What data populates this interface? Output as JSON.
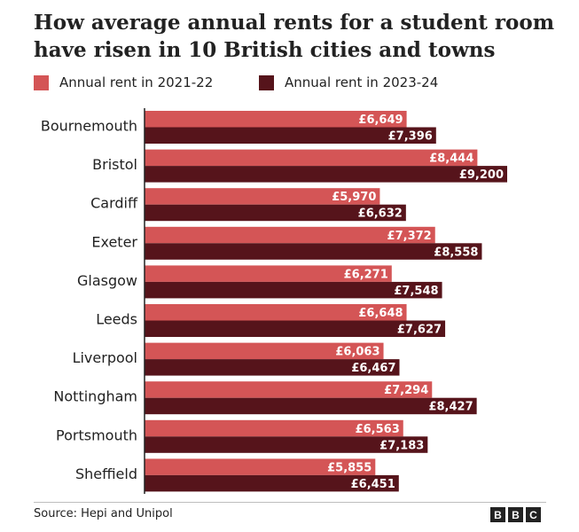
{
  "header": {
    "title": "How average annual rents for a student room have risen in 10 British cities and towns"
  },
  "legend": [
    {
      "label": "Annual rent in 2021-22",
      "color": "#d45556"
    },
    {
      "label": "Annual rent in 2023-24",
      "color": "#56141b"
    }
  ],
  "footer": {
    "source": "Source: Hepi and Unipol",
    "logo_letters": [
      "B",
      "B",
      "C"
    ]
  },
  "chart_data": {
    "type": "bar",
    "orientation": "horizontal",
    "title": "How average annual rents for a student room have risen in 10 British cities and towns",
    "xlabel": "",
    "ylabel": "",
    "xlim": [
      0,
      9500
    ],
    "grid": false,
    "legend_position": "top",
    "categories": [
      "Bournemouth",
      "Bristol",
      "Cardiff",
      "Exeter",
      "Glasgow",
      "Leeds",
      "Liverpool",
      "Nottingham",
      "Portsmouth",
      "Sheffield"
    ],
    "series": [
      {
        "name": "Annual rent in 2021-22",
        "color": "#d45556",
        "values": [
          6649,
          8444,
          5970,
          7372,
          6271,
          6648,
          6063,
          7294,
          6563,
          5855
        ],
        "labels": [
          "£6,649",
          "£8,444",
          "£5,970",
          "£7,372",
          "£6,271",
          "£6,648",
          "£6,063",
          "£7,294",
          "£6,563",
          "£5,855"
        ]
      },
      {
        "name": "Annual rent in 2023-24",
        "color": "#56141b",
        "values": [
          7396,
          9200,
          6632,
          8558,
          7548,
          7627,
          6467,
          8427,
          7183,
          6451
        ],
        "labels": [
          "£7,396",
          "£9,200",
          "£6,632",
          "£8,558",
          "£7,548",
          "£7,627",
          "£6,467",
          "£8,427",
          "£7,183",
          "£6,451"
        ]
      }
    ]
  }
}
